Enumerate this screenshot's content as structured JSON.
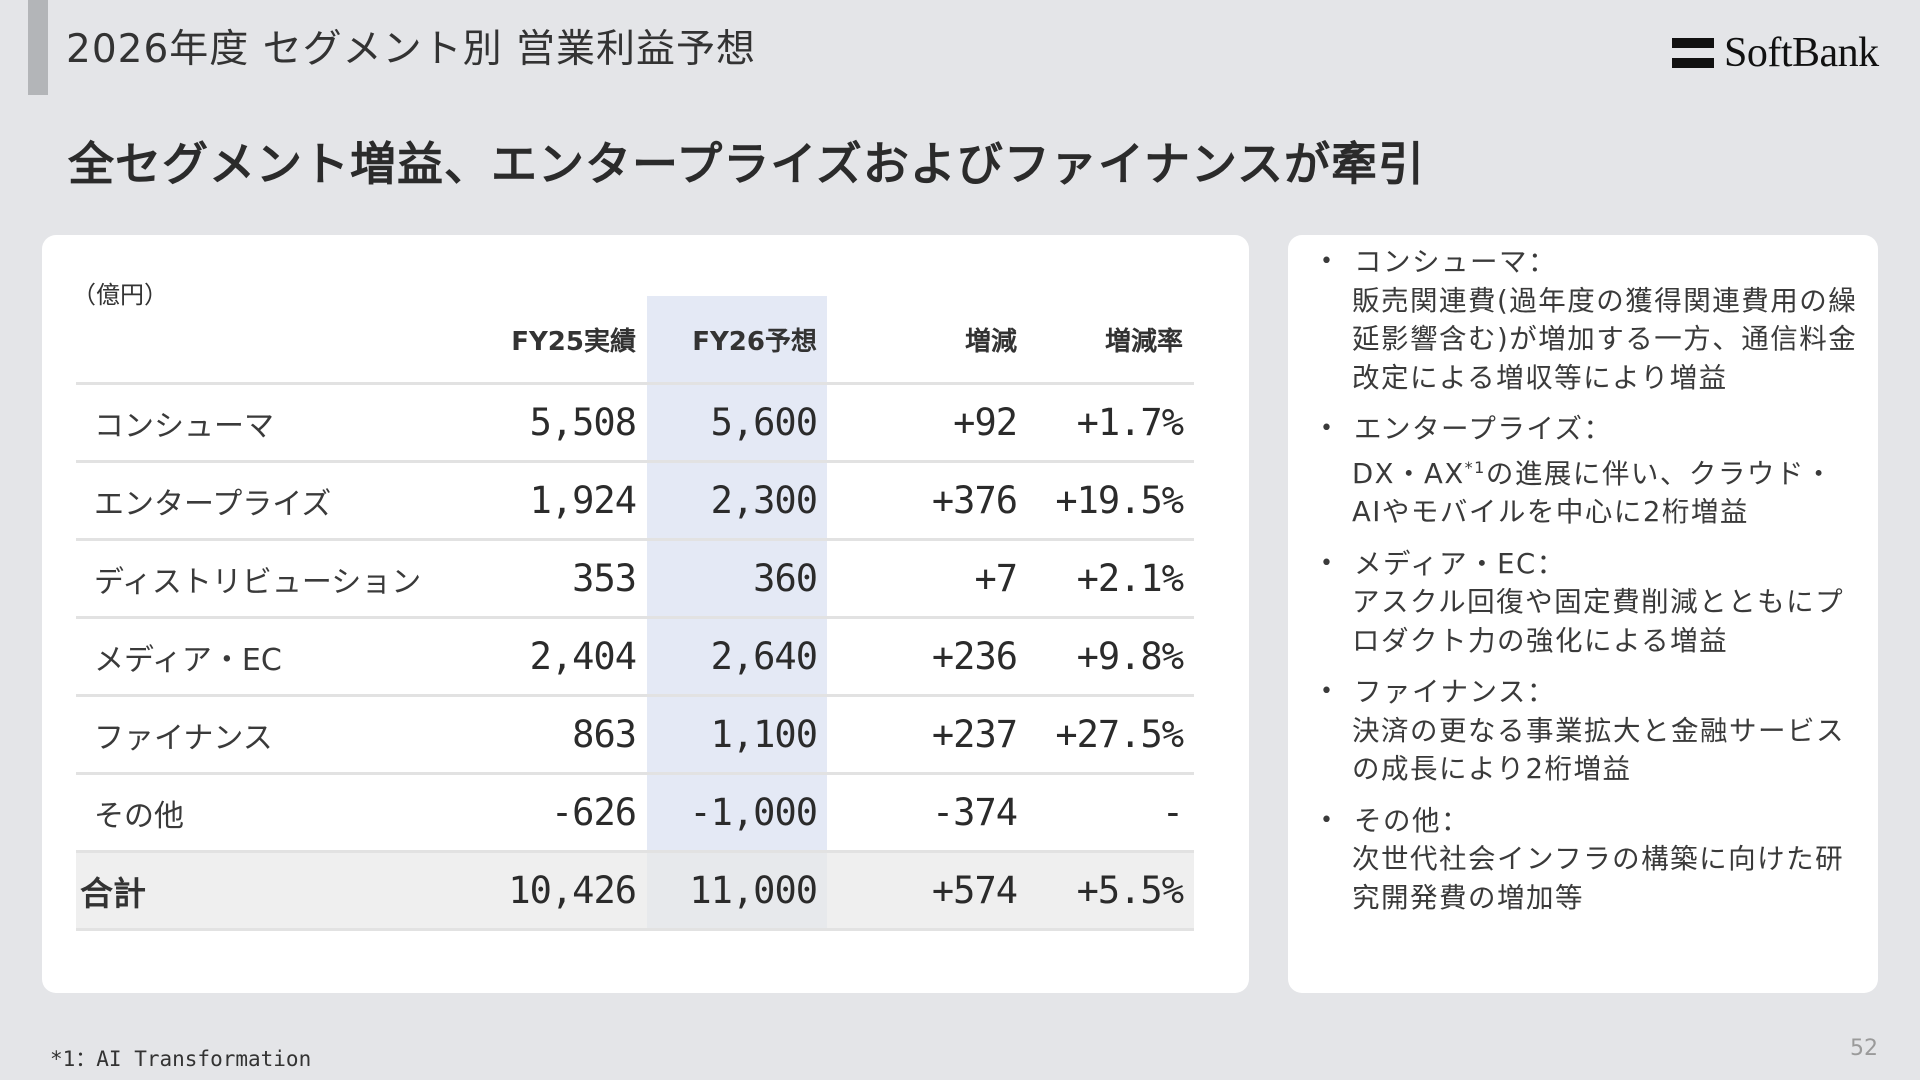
{
  "header": {
    "title": "2026年度 セグメント別 営業利益予想",
    "logo_text": "SoftBank"
  },
  "headline": "全セグメント増益、エンタープライズおよびファイナンスが牽引",
  "table": {
    "unit": "（億円）",
    "columns": [
      "",
      "FY25実績",
      "FY26予想",
      "増減",
      "増減率"
    ],
    "rows": [
      {
        "name": "コンシューマ",
        "fy25": "5,508",
        "fy26": "5,600",
        "diff": "+92",
        "rate": "+1.7%"
      },
      {
        "name": "エンタープライズ",
        "fy25": "1,924",
        "fy26": "2,300",
        "diff": "+376",
        "rate": "+19.5%"
      },
      {
        "name": "ディストリビューション",
        "fy25": "353",
        "fy26": "360",
        "diff": "+7",
        "rate": "+2.1%"
      },
      {
        "name": "メディア・EC",
        "fy25": "2,404",
        "fy26": "2,640",
        "diff": "+236",
        "rate": "+9.8%"
      },
      {
        "name": "ファイナンス",
        "fy25": "863",
        "fy26": "1,100",
        "diff": "+237",
        "rate": "+27.5%"
      },
      {
        "name": "その他",
        "fy25": "-626",
        "fy26": "-1,000",
        "diff": "-374",
        "rate": "-"
      }
    ],
    "total": {
      "name": "合計",
      "fy25": "10,426",
      "fy26": "11,000",
      "diff": "+574",
      "rate": "+5.5%"
    },
    "highlight_color": "#e4e9f5"
  },
  "notes": [
    {
      "title": "コンシューマ：",
      "body": "販売関連費(過年度の獲得関連費用の繰延影響含む)が増加する一方、通信料金改定による増収等により増益"
    },
    {
      "title": "エンタープライズ：",
      "body_pre": "DX・AX",
      "body_sup": "*1",
      "body_post": "の進展に伴い、クラウド・AIやモバイルを中心に2桁増益"
    },
    {
      "title": "メディア・EC：",
      "body": "アスクル回復や固定費削減とともにプロダクト力の強化による増益"
    },
    {
      "title": "ファイナンス：",
      "body": "決済の更なる事業拡大と金融サービスの成長により2桁増益"
    },
    {
      "title": "その他：",
      "body": "次世代社会インフラの構築に向けた研究開発費の増加等"
    }
  ],
  "footnote": "*1：AI Transformation",
  "page_number": "52"
}
